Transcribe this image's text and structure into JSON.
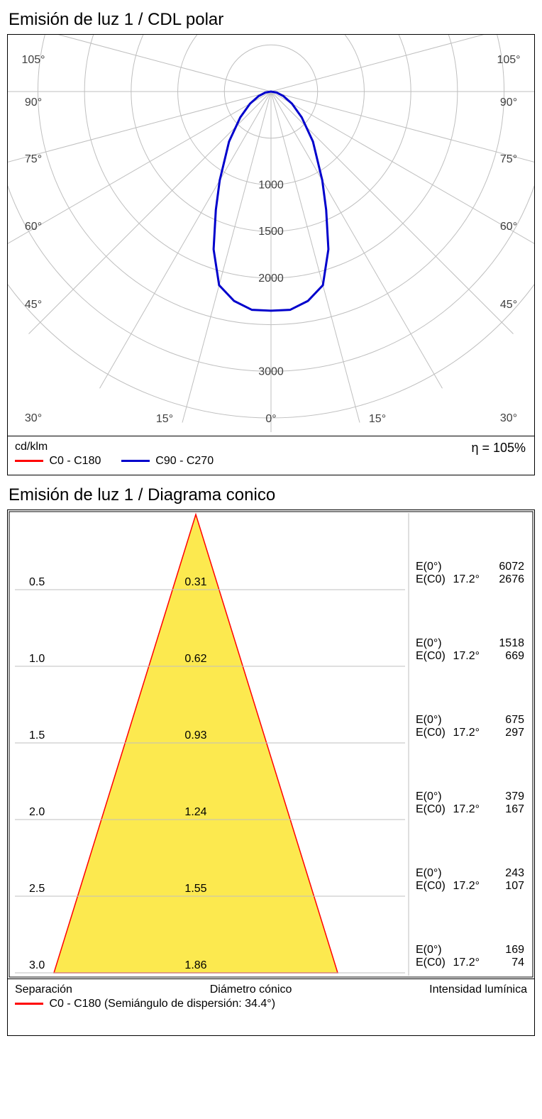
{
  "polar": {
    "title": "Emisión de luz 1 / CDL polar",
    "unit_label": "cd/klm",
    "eta_label": "η = 105%",
    "legend1": {
      "color": "#ff0000",
      "label": "C0 - C180"
    },
    "legend2": {
      "color": "#0000cc",
      "label": "C90 - C270"
    },
    "grid_color": "#bfbfbf",
    "text_color": "#404040",
    "angle_labels_left": [
      "105°",
      "90°",
      "75°",
      "60°",
      "45°",
      "30°"
    ],
    "angle_labels_right": [
      "105°",
      "90°",
      "75°",
      "60°",
      "45°",
      "30°"
    ],
    "bottom_angles": [
      "15°",
      "0°",
      "15°"
    ],
    "radial_ticks": [
      500,
      1000,
      1500,
      2000,
      2500,
      3000,
      3500
    ],
    "radial_labels_shown": [
      1000,
      1500,
      2000,
      3000
    ],
    "radial_max": 3500,
    "curve_color": "#0000cc",
    "curve_width": 3,
    "curve_angles_deg": [
      -90,
      -80,
      -70,
      -60,
      -50,
      -40,
      -30,
      -25,
      -20,
      -15,
      -10,
      -5,
      0,
      5,
      10,
      15,
      20,
      25,
      30,
      40,
      50,
      60,
      70,
      80,
      90
    ],
    "curve_values": [
      0,
      60,
      140,
      260,
      430,
      700,
      1100,
      1400,
      1800,
      2150,
      2280,
      2350,
      2350,
      2350,
      2280,
      2150,
      1800,
      1400,
      1100,
      700,
      430,
      260,
      140,
      60,
      0
    ]
  },
  "cone": {
    "title": "Emisión de luz 1 / Diagrama conico",
    "fill_color": "#fce94f",
    "line_color": "#ff0000",
    "grid_color": "#bfbfbf",
    "divider_color": "#bfbfbf",
    "half_angle_deg": 17.2,
    "legend_label": "C0 - C180 (Semiángulo de dispersión: 34.4°)",
    "header_left": "Separación",
    "header_mid": "Diámetro cónico",
    "header_right": "Intensidad lumínica",
    "rows": [
      {
        "dist": "0.5",
        "diam": "0.31",
        "e0": "6072",
        "ec0": "2676"
      },
      {
        "dist": "1.0",
        "diam": "0.62",
        "e0": "1518",
        "ec0": "669"
      },
      {
        "dist": "1.5",
        "diam": "0.93",
        "e0": "675",
        "ec0": "297"
      },
      {
        "dist": "2.0",
        "diam": "1.24",
        "e0": "379",
        "ec0": "167"
      },
      {
        "dist": "2.5",
        "diam": "1.55",
        "e0": "243",
        "ec0": "107"
      },
      {
        "dist": "3.0",
        "diam": "1.86",
        "e0": "169",
        "ec0": "74"
      }
    ],
    "e0_label": "E(0°)",
    "ec0_label": "E(C0)",
    "angle_label": "17.2°"
  }
}
